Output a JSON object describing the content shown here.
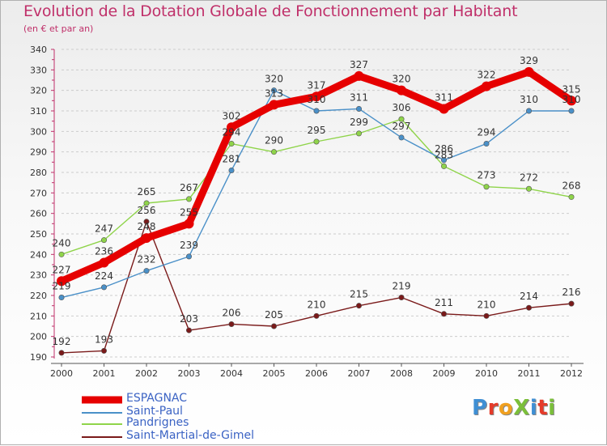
{
  "title": "Evolution de la Dotation Globale de Fonctionnement par Habitant",
  "subtitle": "(en € et par an)",
  "logo": {
    "text": "ProXiti",
    "letter_colors": [
      "#3f8fd4",
      "#e53b2a",
      "#f0a020",
      "#7bbf3a",
      "#3f8fd4",
      "#e53b2a",
      "#7bbf3a"
    ]
  },
  "chart_data": {
    "type": "line",
    "x": [
      "2000",
      "2001",
      "2002",
      "2003",
      "2004",
      "2005",
      "2006",
      "2007",
      "2008",
      "2009",
      "2010",
      "2011",
      "2012"
    ],
    "ylim": [
      190,
      340
    ],
    "yticks": [
      "190",
      "200",
      "210",
      "220",
      "230",
      "240",
      "250",
      "260",
      "270",
      "280",
      "290",
      "300",
      "310",
      "320",
      "330",
      "340"
    ],
    "grid": "horizontal",
    "legend_placement": "bottom-left",
    "series": [
      {
        "name": "ESPAGNAC",
        "color": "#e60000",
        "values": [
          227,
          236,
          248,
          255,
          302,
          313,
          317,
          327,
          320,
          311,
          322,
          329,
          315
        ]
      },
      {
        "name": "Saint-Paul",
        "color": "#4a90c8",
        "values": [
          219,
          224,
          232,
          239,
          281,
          320,
          310,
          311,
          297,
          286,
          294,
          310,
          310
        ]
      },
      {
        "name": "Pandrignes",
        "color": "#8fd44a",
        "values": [
          240,
          247,
          265,
          267,
          294,
          290,
          295,
          299,
          306,
          283,
          273,
          272,
          268
        ]
      },
      {
        "name": "Saint-Martial-de-Gimel",
        "color": "#7a1a1a",
        "values": [
          192,
          193,
          256,
          203,
          206,
          205,
          210,
          215,
          219,
          211,
          210,
          214,
          216
        ]
      }
    ]
  }
}
